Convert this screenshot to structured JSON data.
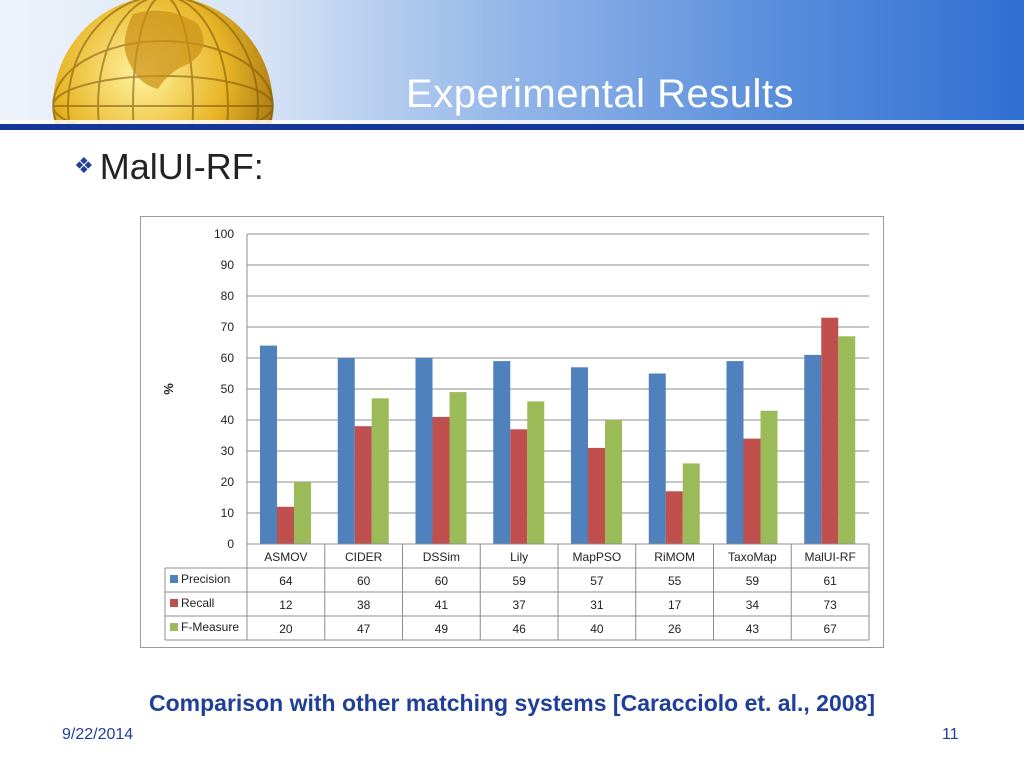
{
  "slide": {
    "title": "Experimental Results",
    "bullet": "MalUI-RF:",
    "caption": "Comparison with other matching systems [Caracciolo et. al., 2008]",
    "date": "9/22/2014",
    "page_number": "11"
  },
  "colors": {
    "accent": "#1f3f9a",
    "Precision": "#4f81bd",
    "Recall": "#c0504d",
    "F-Measure": "#9bbb59"
  },
  "chart_data": {
    "type": "bar",
    "ylabel": "%",
    "ylim": [
      0,
      100
    ],
    "yticks": [
      0,
      10,
      20,
      30,
      40,
      50,
      60,
      70,
      80,
      90,
      100
    ],
    "grid": true,
    "legend": "data-table-left",
    "categories": [
      "ASMOV",
      "CIDER",
      "DSSim",
      "Lily",
      "MapPSO",
      "RiMOM",
      "TaxoMap",
      "MalUI-RF"
    ],
    "series": [
      {
        "name": "Precision",
        "values": [
          64,
          60,
          60,
          59,
          57,
          55,
          59,
          61
        ]
      },
      {
        "name": "Recall",
        "values": [
          12,
          38,
          41,
          37,
          31,
          17,
          34,
          73
        ]
      },
      {
        "name": "F-Measure",
        "values": [
          20,
          47,
          49,
          46,
          40,
          26,
          43,
          67
        ]
      }
    ]
  }
}
